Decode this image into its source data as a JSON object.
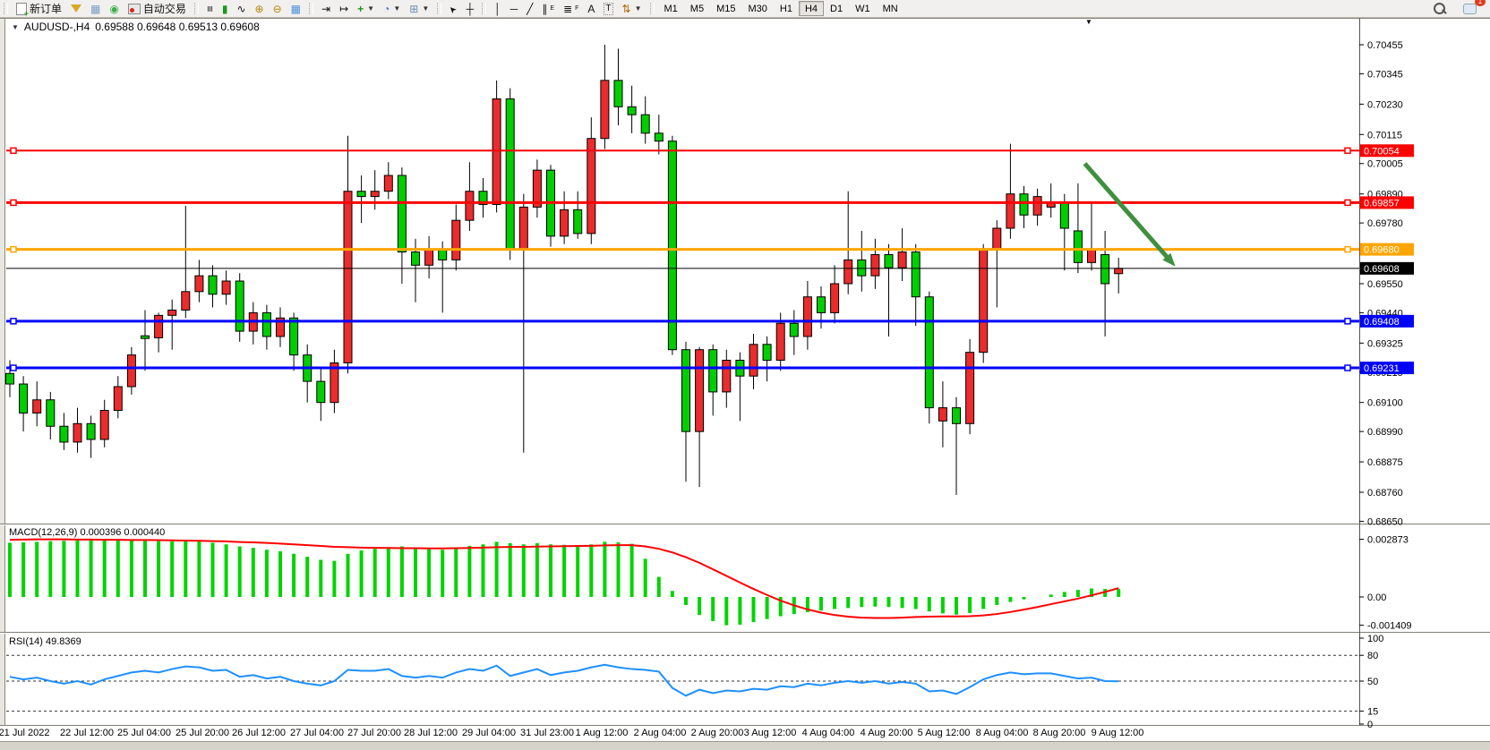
{
  "toolbar": {
    "new_order_label": "新订单",
    "autotrading_label": "自动交易",
    "timeframes": [
      "M1",
      "M5",
      "M15",
      "M30",
      "H1",
      "H4",
      "D1",
      "W1",
      "MN"
    ],
    "active_timeframe": "H4",
    "chat_badge": "1",
    "channel_sub": "E",
    "fib_sub": "F",
    "glyphs": {
      "bars": "≡",
      "candles": "▮",
      "linechart": "∿",
      "zoom_in": "⊕",
      "zoom_out": "⊖",
      "tile": "▦",
      "scroll_end": "⇥",
      "autoscroll": "↦",
      "indicators": "+",
      "period": "◔",
      "template": "⊞",
      "cursor": "➤",
      "crosshair": "┼",
      "vline": "│",
      "hline": "─",
      "trendline": "╱",
      "channel": "∥",
      "fib": "≣",
      "text": "A",
      "label": "T",
      "arrows": "⇅",
      "printer": "▦",
      "signal": "◉",
      "dropdown": "▼",
      "shift_marker": "▼"
    }
  },
  "chart": {
    "symbol": "AUDUSD-,H4",
    "quotes": "0.69588 0.69648 0.69513 0.69608"
  },
  "indicators": {
    "macd_label": "MACD(12,26,9) 0.000396 0.000440",
    "rsi_label": "RSI(14) 49.8369"
  },
  "price_axis": {
    "ticks": [
      "0.70455",
      "0.70345",
      "0.70230",
      "0.70115",
      "0.70005",
      "0.69890",
      "0.69780",
      "0.69550",
      "0.69440",
      "0.69325",
      "0.69215",
      "0.69100",
      "0.68990",
      "0.68875",
      "0.68760",
      "0.68650"
    ],
    "tags": [
      {
        "value": "0.70054",
        "bg": "#ff0000",
        "fg": "#ffffff"
      },
      {
        "value": "0.69857",
        "bg": "#ff0000",
        "fg": "#ffffff"
      },
      {
        "value": "0.69680",
        "bg": "#ffa500",
        "fg": "#ffffff"
      },
      {
        "value": "0.69608",
        "bg": "#000000",
        "fg": "#ffffff"
      },
      {
        "value": "0.69408",
        "bg": "#0000ff",
        "fg": "#ffffff"
      },
      {
        "value": "0.69231",
        "bg": "#0000ff",
        "fg": "#ffffff"
      }
    ]
  },
  "macd_axis": [
    {
      "label": "0.002873",
      "v": 0.002873
    },
    {
      "label": "0.00",
      "v": 0
    },
    {
      "label": "-0.001409",
      "v": -0.001409
    }
  ],
  "rsi_axis": [
    {
      "label": "100",
      "v": 100
    },
    {
      "label": "80",
      "v": 80
    },
    {
      "label": "50",
      "v": 50
    },
    {
      "label": "15",
      "v": 15
    },
    {
      "label": "0",
      "v": 0
    }
  ],
  "colors": {
    "bull": "#ea2c2c",
    "bear": "#00ce00",
    "wick": "#000000",
    "macd_bar": "#00d400",
    "macd_signal": "#ff0000",
    "rsi_line": "#1e90ff",
    "line_red": "#ff0000",
    "line_orange": "#ffa500",
    "line_blue": "#0000ff",
    "current_price_line": "#000000",
    "arrow": "#3f8f3f"
  },
  "chart_data": {
    "type": "candlestick",
    "symbol": "AUDUSD",
    "period": "H4",
    "title": "AUDUSD-,H4 0.69588 0.69648 0.69513 0.69608",
    "ohlc_display": {
      "open": "0.69588",
      "high": "0.69648",
      "low": "0.69513",
      "close": "0.69608"
    },
    "price_range": [
      0.6865,
      0.70455
    ],
    "current_price": 0.69608,
    "grid": false,
    "candles": [
      [
        0.6921,
        0.6926,
        0.6912,
        0.6917
      ],
      [
        0.6917,
        0.692,
        0.6899,
        0.6906
      ],
      [
        0.6906,
        0.6918,
        0.6901,
        0.6911
      ],
      [
        0.6911,
        0.6914,
        0.6896,
        0.6901
      ],
      [
        0.6901,
        0.6906,
        0.6892,
        0.6895
      ],
      [
        0.6895,
        0.6908,
        0.6891,
        0.6902
      ],
      [
        0.6902,
        0.6905,
        0.6889,
        0.6896
      ],
      [
        0.6896,
        0.6911,
        0.6893,
        0.6907
      ],
      [
        0.6907,
        0.692,
        0.6904,
        0.6916
      ],
      [
        0.6916,
        0.6931,
        0.6913,
        0.6928
      ],
      [
        0.6935,
        0.6945,
        0.6922,
        0.69345
      ],
      [
        0.69345,
        0.6944,
        0.6929,
        0.6943
      ],
      [
        0.6943,
        0.6949,
        0.693,
        0.6945
      ],
      [
        0.6945,
        0.69845,
        0.6942,
        0.6952
      ],
      [
        0.6952,
        0.6964,
        0.6948,
        0.6958
      ],
      [
        0.6958,
        0.6962,
        0.6946,
        0.6951
      ],
      [
        0.6951,
        0.696,
        0.6947,
        0.6956
      ],
      [
        0.6956,
        0.6959,
        0.6933,
        0.6937
      ],
      [
        0.6937,
        0.6948,
        0.6932,
        0.6944
      ],
      [
        0.6944,
        0.6947,
        0.693,
        0.6935
      ],
      [
        0.6935,
        0.6946,
        0.6931,
        0.6942
      ],
      [
        0.6942,
        0.6944,
        0.6922,
        0.6928
      ],
      [
        0.6928,
        0.6932,
        0.691,
        0.6918
      ],
      [
        0.6918,
        0.6923,
        0.6903,
        0.691
      ],
      [
        0.691,
        0.693,
        0.6906,
        0.6925
      ],
      [
        0.6925,
        0.7011,
        0.6921,
        0.699
      ],
      [
        0.699,
        0.6996,
        0.6978,
        0.6988
      ],
      [
        0.6988,
        0.6998,
        0.6983,
        0.699
      ],
      [
        0.699,
        0.7001,
        0.6987,
        0.6996
      ],
      [
        0.6996,
        0.6999,
        0.6955,
        0.6967
      ],
      [
        0.6967,
        0.6972,
        0.6948,
        0.6962
      ],
      [
        0.6962,
        0.6973,
        0.6957,
        0.6968
      ],
      [
        0.6968,
        0.6971,
        0.6944,
        0.6964
      ],
      [
        0.6964,
        0.6985,
        0.696,
        0.6979
      ],
      [
        0.6979,
        0.7001,
        0.6975,
        0.699
      ],
      [
        0.699,
        0.6995,
        0.698,
        0.6985
      ],
      [
        0.6985,
        0.7032,
        0.6982,
        0.7025
      ],
      [
        0.7025,
        0.7029,
        0.6964,
        0.6968
      ],
      [
        0.6968,
        0.6989,
        0.6891,
        0.6984
      ],
      [
        0.6984,
        0.7002,
        0.698,
        0.6998
      ],
      [
        0.6998,
        0.7,
        0.6969,
        0.6973
      ],
      [
        0.6973,
        0.699,
        0.697,
        0.6983
      ],
      [
        0.6983,
        0.699,
        0.6972,
        0.6974
      ],
      [
        0.6974,
        0.7018,
        0.697,
        0.701
      ],
      [
        0.701,
        0.70455,
        0.7006,
        0.7032
      ],
      [
        0.7032,
        0.7044,
        0.7015,
        0.7022
      ],
      [
        0.7022,
        0.703,
        0.7012,
        0.7019
      ],
      [
        0.7019,
        0.7026,
        0.7008,
        0.7012
      ],
      [
        0.7012,
        0.7019,
        0.7004,
        0.7009
      ],
      [
        0.7009,
        0.7011,
        0.6928,
        0.693
      ],
      [
        0.693,
        0.6933,
        0.688,
        0.6899
      ],
      [
        0.6899,
        0.6931,
        0.6878,
        0.693
      ],
      [
        0.693,
        0.6932,
        0.6905,
        0.6914
      ],
      [
        0.6914,
        0.693,
        0.6908,
        0.6926
      ],
      [
        0.6926,
        0.6929,
        0.6903,
        0.692
      ],
      [
        0.692,
        0.6936,
        0.6915,
        0.6932
      ],
      [
        0.6932,
        0.6935,
        0.6918,
        0.6926
      ],
      [
        0.6926,
        0.6944,
        0.6922,
        0.694
      ],
      [
        0.694,
        0.6945,
        0.6928,
        0.6935
      ],
      [
        0.6935,
        0.6956,
        0.693,
        0.695
      ],
      [
        0.695,
        0.6954,
        0.6938,
        0.6944
      ],
      [
        0.6944,
        0.6962,
        0.694,
        0.6955
      ],
      [
        0.6955,
        0.699,
        0.6951,
        0.6964
      ],
      [
        0.6964,
        0.6975,
        0.6952,
        0.6958
      ],
      [
        0.6958,
        0.6972,
        0.6953,
        0.6966
      ],
      [
        0.6966,
        0.697,
        0.6935,
        0.6961
      ],
      [
        0.6961,
        0.6976,
        0.6956,
        0.6967
      ],
      [
        0.6967,
        0.697,
        0.6939,
        0.695
      ],
      [
        0.695,
        0.6952,
        0.6902,
        0.6908
      ],
      [
        0.6903,
        0.6918,
        0.6893,
        0.6908
      ],
      [
        0.6908,
        0.6912,
        0.6875,
        0.6902
      ],
      [
        0.6902,
        0.6934,
        0.6898,
        0.6929
      ],
      [
        0.6929,
        0.697,
        0.6925,
        0.6968
      ],
      [
        0.6968,
        0.6979,
        0.6946,
        0.6976
      ],
      [
        0.6976,
        0.7008,
        0.6972,
        0.6989
      ],
      [
        0.6989,
        0.6992,
        0.6976,
        0.6981
      ],
      [
        0.6981,
        0.6991,
        0.6977,
        0.6988
      ],
      [
        0.6984,
        0.6993,
        0.698,
        0.6986
      ],
      [
        0.6986,
        0.6989,
        0.696,
        0.6976
      ],
      [
        0.6975,
        0.6993,
        0.6959,
        0.6963
      ],
      [
        0.6963,
        0.6986,
        0.696,
        0.6968
      ],
      [
        0.6966,
        0.6975,
        0.6935,
        0.6955
      ],
      [
        0.69588,
        0.69648,
        0.69513,
        0.69608
      ]
    ],
    "hlines": [
      {
        "price": 0.70054,
        "color": "#ff0000",
        "width": 2
      },
      {
        "price": 0.69857,
        "color": "#ff0000",
        "width": 3
      },
      {
        "price": 0.6968,
        "color": "#ffa500",
        "width": 3
      },
      {
        "price": 0.69408,
        "color": "#0000ff",
        "width": 3
      },
      {
        "price": 0.69231,
        "color": "#0000ff",
        "width": 3
      }
    ],
    "time_labels": [
      "21 Jul 2022",
      "22 Jul 12:00",
      "25 Jul 04:00",
      "25 Jul 20:00",
      "26 Jul 12:00",
      "27 Jul 04:00",
      "27 Jul 20:00",
      "28 Jul 12:00",
      "29 Jul 04:00",
      "31 Jul 23:00",
      "1 Aug 12:00",
      "2 Aug 04:00",
      "2 Aug 20:00",
      "3 Aug 12:00",
      "4 Aug 04:00",
      "4 Aug 20:00",
      "5 Aug 12:00",
      "8 Aug 04:00",
      "8 Aug 20:00",
      "9 Aug 12:00"
    ],
    "time_label_x": [
      27,
      97,
      161,
      226,
      289,
      354,
      418,
      481,
      546,
      611,
      672,
      737,
      801,
      860,
      925,
      990,
      1054,
      1119,
      1183,
      1248
    ],
    "macd": {
      "params": "12,26,9",
      "value": 0.000396,
      "signal_value": 0.00044,
      "range": [
        -0.001409,
        0.002873
      ],
      "hist": [
        0.0027,
        0.00272,
        0.00275,
        0.00278,
        0.0028,
        0.00282,
        0.00285,
        0.00287,
        0.00285,
        0.00282,
        0.0028,
        0.00278,
        0.00277,
        0.00278,
        0.00276,
        0.0027,
        0.00262,
        0.00252,
        0.00245,
        0.00235,
        0.00228,
        0.00215,
        0.002,
        0.00185,
        0.0018,
        0.00215,
        0.00232,
        0.0024,
        0.00248,
        0.00252,
        0.00245,
        0.0024,
        0.00235,
        0.00242,
        0.00255,
        0.00262,
        0.00275,
        0.00268,
        0.00262,
        0.00268,
        0.00262,
        0.0026,
        0.00255,
        0.00262,
        0.00275,
        0.00272,
        0.00265,
        0.0019,
        0.001,
        0.0003,
        -0.0004,
        -0.0009,
        -0.0012,
        -0.00141,
        -0.00138,
        -0.00125,
        -0.0011,
        -0.00096,
        -0.00085,
        -0.00076,
        -0.00068,
        -0.0006,
        -0.00055,
        -0.0005,
        -0.00048,
        -0.0005,
        -0.00055,
        -0.0006,
        -0.00072,
        -0.00082,
        -0.00088,
        -0.0008,
        -0.0006,
        -0.0004,
        -0.00025,
        -0.00012,
        0.0,
        0.00012,
        0.00025,
        0.00035,
        0.00042,
        0.0004,
        0.000396
      ],
      "signal": [
        0.00285,
        0.00286,
        0.00287,
        0.00287,
        0.00287,
        0.00286,
        0.00286,
        0.00285,
        0.00285,
        0.00284,
        0.00284,
        0.00283,
        0.00282,
        0.00281,
        0.0028,
        0.00278,
        0.00277,
        0.00274,
        0.00272,
        0.00269,
        0.00266,
        0.00262,
        0.00258,
        0.00254,
        0.0025,
        0.00248,
        0.00246,
        0.00245,
        0.00244,
        0.00243,
        0.00243,
        0.00242,
        0.00242,
        0.00243,
        0.00244,
        0.00246,
        0.00248,
        0.00249,
        0.0025,
        0.00251,
        0.00252,
        0.00253,
        0.00254,
        0.00255,
        0.00257,
        0.00258,
        0.00258,
        0.00252,
        0.0024,
        0.00222,
        0.00198,
        0.0017,
        0.00138,
        0.00105,
        0.00072,
        0.0004,
        0.0001,
        -0.00018,
        -0.00042,
        -0.00062,
        -0.00078,
        -0.0009,
        -0.00098,
        -0.00103,
        -0.00105,
        -0.00105,
        -0.00103,
        -0.001,
        -0.00098,
        -0.00097,
        -0.00097,
        -0.00096,
        -0.00092,
        -0.00085,
        -0.00075,
        -0.00063,
        -0.0005,
        -0.00036,
        -0.00022,
        -8e-05,
        8e-05,
        0.00025,
        0.00044
      ]
    },
    "rsi": {
      "period": 14,
      "value": 49.8369,
      "levels": [
        80,
        50,
        15
      ],
      "range": [
        0,
        100
      ],
      "values": [
        55,
        52,
        54,
        50,
        47,
        50,
        46,
        52,
        56,
        60,
        62,
        60,
        64,
        67,
        66,
        62,
        63,
        55,
        57,
        53,
        55,
        50,
        47,
        45,
        50,
        63,
        62,
        62,
        64,
        56,
        54,
        56,
        54,
        60,
        64,
        62,
        68,
        56,
        60,
        64,
        57,
        60,
        62,
        66,
        69,
        66,
        64,
        63,
        61,
        42,
        33,
        40,
        36,
        39,
        38,
        41,
        40,
        44,
        43,
        47,
        45,
        48,
        50,
        48,
        50,
        47,
        49,
        47,
        38,
        39,
        35,
        43,
        52,
        57,
        60,
        58,
        59,
        59,
        56,
        53,
        54,
        50,
        49.8
      ]
    },
    "annotations": [
      {
        "type": "arrow",
        "color": "#3f8f3f",
        "from": {
          "bar": 79.5,
          "price": 0.70005
        },
        "to": {
          "bar": 86.2,
          "price": 0.69615
        }
      }
    ]
  }
}
